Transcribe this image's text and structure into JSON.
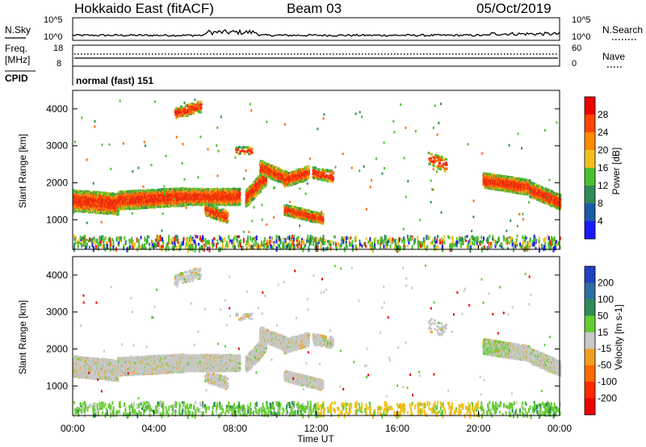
{
  "header": {
    "title": "Hokkaido East (fitACF)",
    "beam": "Beam 03",
    "date": "05/Oct/2019"
  },
  "noise_panel": {
    "left_label": "N.Sky",
    "right_label": "N.Search",
    "left_ticks": [
      "10^5",
      "10^0"
    ],
    "right_ticks": [
      "10^5",
      "10^0"
    ]
  },
  "freq_panel": {
    "left_label_1": "Freq.",
    "left_label_2": "[MHz]",
    "right_label": "Nave",
    "left_ticks": [
      "18",
      "8"
    ],
    "right_ticks": [
      "60",
      "0"
    ]
  },
  "cpid_panel": {
    "label": "CPID",
    "value": "normal (fast) 151"
  },
  "chart_data": [
    {
      "type": "heatmap",
      "name": "power",
      "ylabel": "Slant Range [km]",
      "yticks": [
        "1000",
        "2000",
        "3000",
        "4000"
      ],
      "ylim": [
        200,
        4500
      ],
      "xlim_hours": [
        0,
        24
      ],
      "colorbar_label": "Power [dB]",
      "colorbar_ticks": [
        "4",
        "8",
        "12",
        "16",
        "20",
        "24",
        "28"
      ],
      "colors": [
        "#1a1aff",
        "#1e5aa8",
        "#2e8b57",
        "#4cbf2f",
        "#f0c020",
        "#ff8c00",
        "#ff4500",
        "#ee0000"
      ],
      "scatter_color": "#e85010"
    },
    {
      "type": "heatmap",
      "name": "velocity",
      "ylabel": "Slant Range [km]",
      "yticks": [
        "1000",
        "2000",
        "3000",
        "4000"
      ],
      "ylim": [
        200,
        4500
      ],
      "xlim_hours": [
        0,
        24
      ],
      "colorbar_label": "Velocity [m s-1]",
      "colorbar_ticks": [
        "200",
        "100",
        "50",
        "15",
        "-15",
        "-50",
        "-100",
        "-200"
      ],
      "colors": [
        "#2040c0",
        "#2e6e9e",
        "#2e8b57",
        "#66cc33",
        "#c8c8c8",
        "#f0a020",
        "#ff6a00",
        "#ff2a00",
        "#ee0000"
      ],
      "scatter_color": "#c8c8c8"
    }
  ],
  "time_axis": {
    "label": "Time UT",
    "ticks": [
      "00:00",
      "04:00",
      "08:00",
      "12:00",
      "16:00",
      "20:00",
      "00:00"
    ]
  }
}
